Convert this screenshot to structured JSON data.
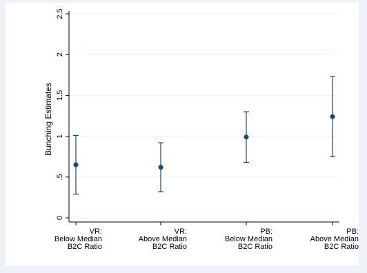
{
  "chart_data": {
    "type": "scatter",
    "title": "",
    "xlabel": "",
    "ylabel": "Bunching Estimates",
    "ylim": [
      0,
      2.5
    ],
    "yticks": [
      {
        "value": 0,
        "label": "0"
      },
      {
        "value": 0.5,
        "label": ".5"
      },
      {
        "value": 1,
        "label": "1"
      },
      {
        "value": 1.5,
        "label": "1.5"
      },
      {
        "value": 2,
        "label": "2"
      },
      {
        "value": 2.5,
        "label": "2.5"
      }
    ],
    "categories": [
      [
        "VR:",
        "Below Median",
        "B2C Ratio"
      ],
      [
        "VR:",
        "Above Median",
        "B2C Ratio"
      ],
      [
        "PB:",
        "Below Median",
        "B2C Ratio"
      ],
      [
        "PB:",
        "Above Median",
        "B2C Ratio"
      ]
    ],
    "points": [
      {
        "estimate": 0.65,
        "lower": 0.29,
        "upper": 1.01
      },
      {
        "estimate": 0.62,
        "lower": 0.32,
        "upper": 0.92
      },
      {
        "estimate": 0.99,
        "lower": 0.68,
        "upper": 1.3
      },
      {
        "estimate": 1.24,
        "lower": 0.75,
        "upper": 1.73
      }
    ],
    "grid": true,
    "colors": {
      "point": "#1a476f",
      "grid": "#eaf2f3",
      "axis": "#000000",
      "background": "#eef2f6",
      "plot": "#ffffff"
    }
  }
}
